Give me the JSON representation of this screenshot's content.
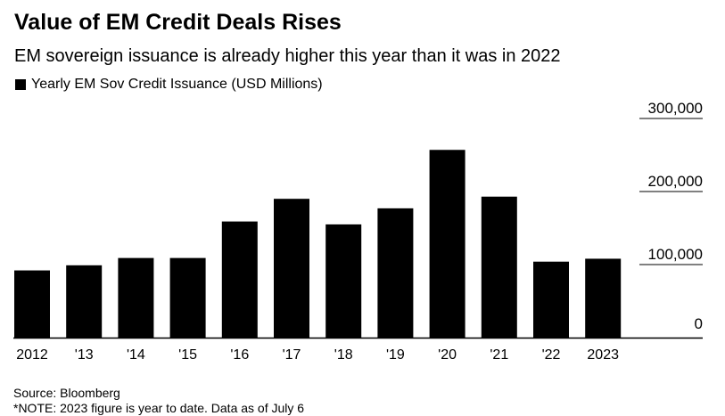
{
  "title": "Value of EM Credit Deals Rises",
  "subtitle": "EM sovereign issuance is already higher this year than it was in 2022",
  "legend_label": "Yearly EM Sov Credit Issuance (USD Millions)",
  "source": "Source: Bloomberg",
  "note": "*NOTE: 2023 figure is year to date. Data as of July 6",
  "colors": {
    "bar": "#000000",
    "gridline": "#000000",
    "background": "#ffffff"
  },
  "chart_data": {
    "type": "bar",
    "title": "Value of EM Credit Deals Rises",
    "subtitle": "EM sovereign issuance is already higher this year than it was in 2022",
    "xlabel": "",
    "ylabel": "",
    "categories": [
      "2012",
      "'13",
      "'14",
      "'15",
      "'16",
      "'17",
      "'18",
      "'19",
      "'20",
      "'21",
      "'22",
      "2023"
    ],
    "series": [
      {
        "name": "Yearly EM Sov Credit Issuance (USD Millions)",
        "values": [
          92000,
          99000,
          109000,
          109000,
          159000,
          190000,
          155000,
          177000,
          257000,
          193000,
          104000,
          108000
        ]
      }
    ],
    "ylim": [
      0,
      300000
    ],
    "yticks": [
      0,
      100000,
      200000,
      300000
    ],
    "ytick_labels": [
      "0",
      "100,000",
      "200,000",
      "300,000"
    ],
    "y_axis_position": "right",
    "grid": true,
    "legend_position": "top-left"
  }
}
